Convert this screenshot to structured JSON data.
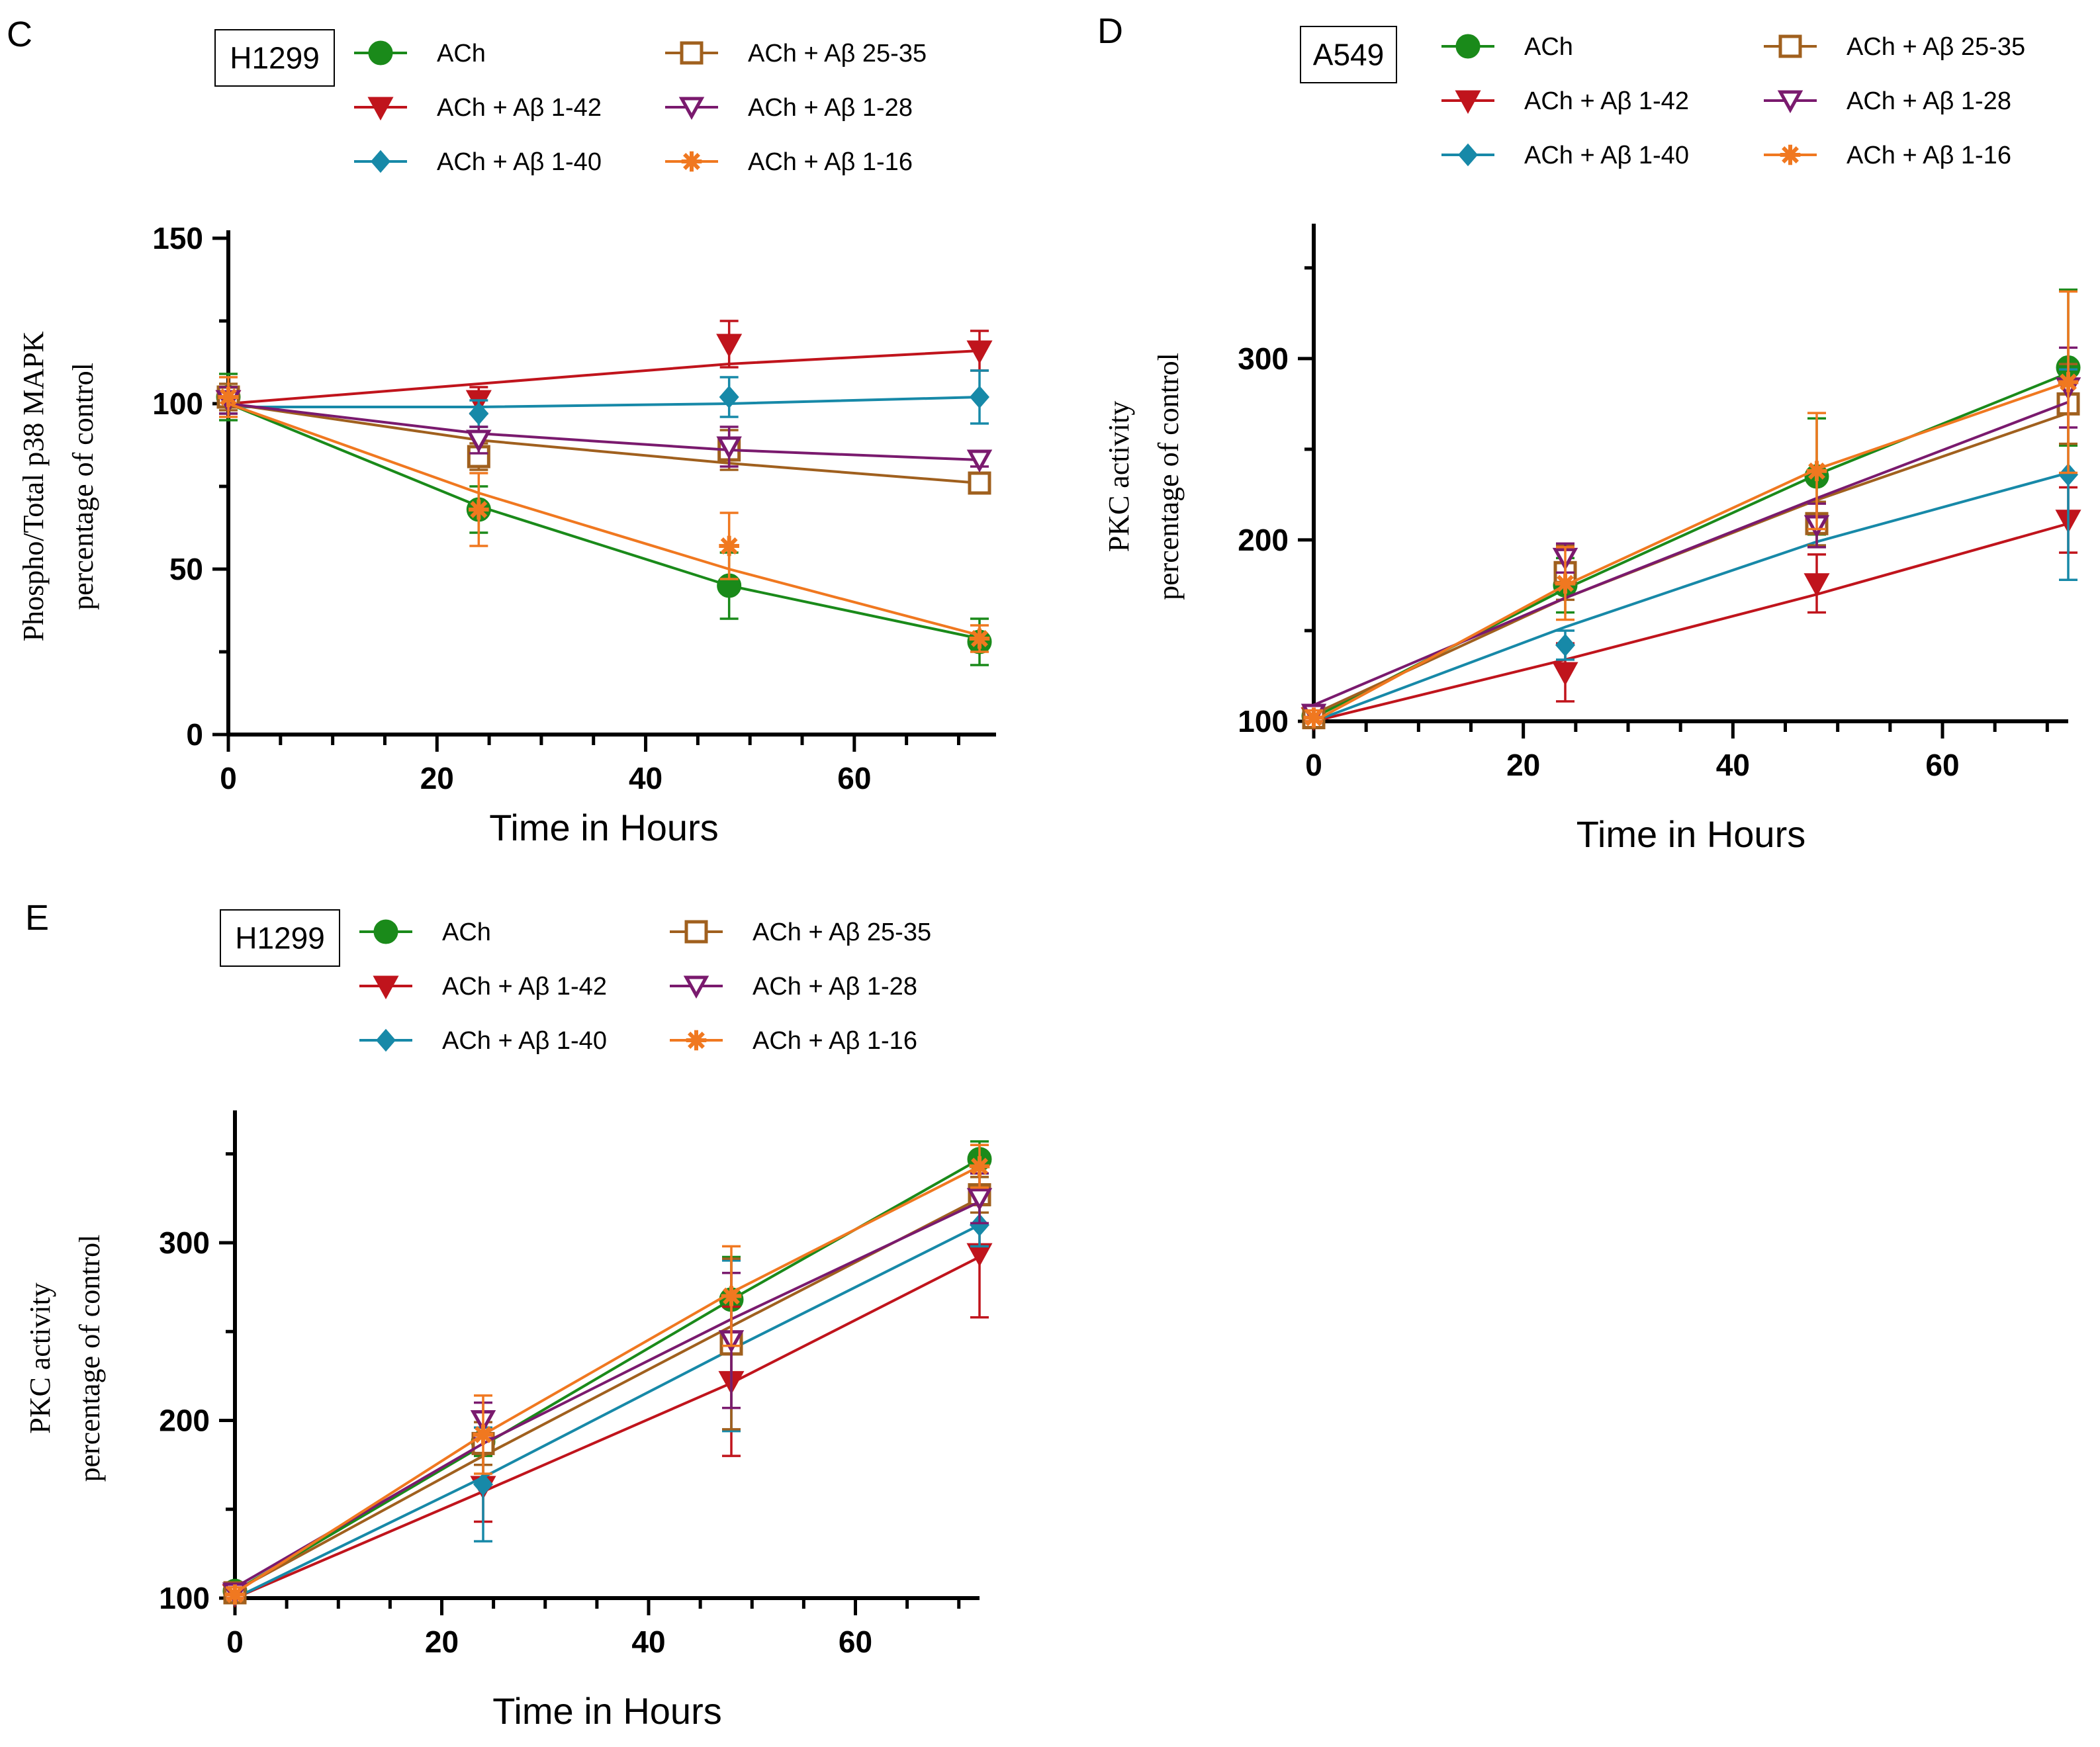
{
  "colors": {
    "ACh": "#1a8a1a",
    "Ab142": "#c0141c",
    "Ab140": "#1789a8",
    "Ab2535": "#a0601e",
    "Ab128": "#7a1a6e",
    "Ab116": "#f07820"
  },
  "legend": [
    {
      "key": "ACh",
      "label": "ACh",
      "marker": "circle"
    },
    {
      "key": "Ab142",
      "label": "ACh + Aβ 1-42",
      "marker": "triangle-down"
    },
    {
      "key": "Ab140",
      "label": "ACh + Aβ 1-40",
      "marker": "diamond"
    },
    {
      "key": "Ab2535",
      "label": "ACh + Aβ 25-35",
      "marker": "square-open"
    },
    {
      "key": "Ab128",
      "label": "ACh + Aβ 1-28",
      "marker": "triangle-down-open"
    },
    {
      "key": "Ab116",
      "label": "ACh + Aβ 1-16",
      "marker": "asterisk"
    }
  ],
  "chart_data": [
    {
      "panel": "C",
      "type": "line",
      "cell_line": "H1299",
      "xlabel": "Time in Hours",
      "ylabel_line1": "Phospho/Total p38 MAPK",
      "ylabel_line2": "percentage of control",
      "xlim": [
        0,
        72
      ],
      "ylim": [
        0,
        150
      ],
      "xticks": [
        0,
        20,
        40,
        60
      ],
      "yticks": [
        0,
        50,
        100,
        150
      ],
      "x": [
        0,
        24,
        48,
        72
      ],
      "series": [
        {
          "key": "ACh",
          "name": "ACh",
          "values": [
            102,
            68,
            45,
            28
          ],
          "errors": [
            7,
            7,
            10,
            7
          ],
          "fit": [
            100,
            69,
            45,
            29
          ]
        },
        {
          "key": "Ab142",
          "name": "ACh + Aβ 1-42",
          "values": [
            101,
            101,
            118,
            116
          ],
          "errors": [
            4,
            4,
            7,
            6
          ],
          "fit": [
            100,
            106,
            112,
            116
          ]
        },
        {
          "key": "Ab140",
          "name": "ACh + Aβ 1-40",
          "values": [
            101,
            97,
            102,
            102
          ],
          "errors": [
            4,
            4,
            6,
            8
          ],
          "fit": [
            99,
            99,
            100,
            102
          ]
        },
        {
          "key": "Ab2535",
          "name": "ACh + Aβ 25-35",
          "values": [
            102,
            84,
            86,
            76
          ],
          "errors": [
            4,
            4,
            6,
            2
          ],
          "fit": [
            100,
            89,
            82,
            76
          ]
        },
        {
          "key": "Ab128",
          "name": "ACh + Aβ 1-28",
          "values": [
            101,
            89,
            87,
            83
          ],
          "errors": [
            4,
            4,
            6,
            2
          ],
          "fit": [
            100,
            91,
            86,
            83
          ]
        },
        {
          "key": "Ab116",
          "name": "ACh + Aβ 1-16",
          "values": [
            102,
            68,
            57,
            29
          ],
          "errors": [
            6,
            11,
            10,
            4
          ],
          "fit": [
            100,
            73,
            50,
            30
          ]
        }
      ]
    },
    {
      "panel": "D",
      "type": "line",
      "cell_line": "A549",
      "xlabel": "Time in Hours",
      "ylabel_line1": "PKC activity",
      "ylabel_line2": "percentage of control",
      "xlim": [
        0,
        72
      ],
      "ylim": [
        100,
        370
      ],
      "xticks": [
        0,
        20,
        40,
        60
      ],
      "yticks": [
        100,
        200,
        300
      ],
      "x": [
        0,
        24,
        48,
        72
      ],
      "series": [
        {
          "key": "ACh",
          "name": "ACh",
          "values": [
            103,
            175,
            235,
            295
          ],
          "errors": [
            4,
            15,
            32,
            43
          ],
          "fit": [
            102,
            173,
            236,
            292
          ]
        },
        {
          "key": "Ab142",
          "name": "ACh + Aβ 1-42",
          "values": [
            102,
            127,
            176,
            211
          ],
          "errors": [
            4,
            16,
            16,
            18
          ],
          "fit": [
            100,
            134,
            170,
            209
          ]
        },
        {
          "key": "Ab140",
          "name": "ACh + Aβ 1-40",
          "values": [
            102,
            142,
            209,
            236
          ],
          "errors": [
            4,
            8,
            12,
            58
          ],
          "fit": [
            100,
            152,
            199,
            237
          ]
        },
        {
          "key": "Ab2535",
          "name": "ACh + Aβ 25-35",
          "values": [
            102,
            182,
            209,
            275
          ],
          "errors": [
            4,
            15,
            12,
            22
          ],
          "fit": [
            104,
            168,
            222,
            270
          ]
        },
        {
          "key": "Ab128",
          "name": "ACh + Aβ 1-28",
          "values": [
            104,
            190,
            208,
            284
          ],
          "errors": [
            4,
            8,
            12,
            22
          ],
          "fit": [
            109,
            168,
            223,
            276
          ]
        },
        {
          "key": "Ab116",
          "name": "ACh + Aβ 1-16",
          "values": [
            102,
            176,
            238,
            287
          ],
          "errors": [
            4,
            20,
            32,
            50
          ],
          "fit": [
            100,
            175,
            239,
            287
          ]
        }
      ]
    },
    {
      "panel": "E",
      "type": "line",
      "cell_line": "H1299",
      "xlabel": "Time in Hours",
      "ylabel_line1": "PKC activity",
      "ylabel_line2": "percentage of control",
      "xlim": [
        0,
        72
      ],
      "ylim": [
        100,
        370
      ],
      "xticks": [
        0,
        20,
        40,
        60
      ],
      "yticks": [
        100,
        200,
        300
      ],
      "x": [
        0,
        24,
        48,
        72
      ],
      "series": [
        {
          "key": "ACh",
          "name": "ACh",
          "values": [
            104,
            188,
            268,
            347
          ],
          "errors": [
            4,
            8,
            24,
            10
          ],
          "fit": [
            104,
            186,
            268,
            347
          ]
        },
        {
          "key": "Ab142",
          "name": "ACh + Aβ 1-42",
          "values": [
            102,
            163,
            222,
            294
          ],
          "errors": [
            4,
            20,
            42,
            36
          ],
          "fit": [
            100,
            160,
            221,
            292
          ]
        },
        {
          "key": "Ab140",
          "name": "ACh + Aβ 1-40",
          "values": [
            102,
            164,
            242,
            310
          ],
          "errors": [
            4,
            32,
            48,
            12
          ],
          "fit": [
            100,
            168,
            240,
            310
          ]
        },
        {
          "key": "Ab2535",
          "name": "ACh + Aβ 25-35",
          "values": [
            103,
            187,
            243,
            327
          ],
          "errors": [
            4,
            12,
            48,
            10
          ],
          "fit": [
            104,
            180,
            253,
            325
          ]
        },
        {
          "key": "Ab128",
          "name": "ACh + Aβ 1-28",
          "values": [
            103,
            200,
            245,
            325
          ],
          "errors": [
            4,
            10,
            38,
            14
          ],
          "fit": [
            106,
            187,
            257,
            323
          ]
        },
        {
          "key": "Ab116",
          "name": "ACh + Aβ 1-16",
          "values": [
            102,
            192,
            270,
            343
          ],
          "errors": [
            4,
            22,
            28,
            12
          ],
          "fit": [
            103,
            192,
            272,
            343
          ]
        }
      ]
    }
  ]
}
